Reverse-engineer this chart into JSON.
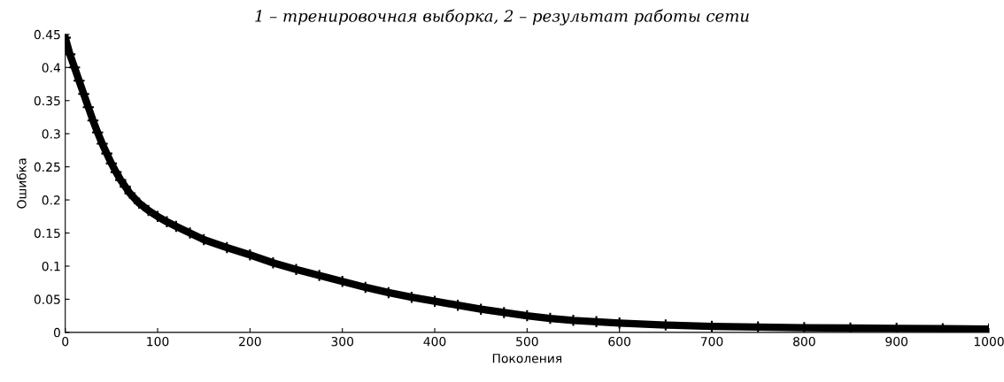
{
  "chart_data": {
    "type": "line",
    "title": "1 – тренировочная выборка, 2 – результат работы сети",
    "xlabel": "Поколения",
    "ylabel": "Ошибка",
    "x": [
      0,
      5,
      10,
      15,
      20,
      25,
      30,
      35,
      40,
      45,
      50,
      55,
      60,
      65,
      70,
      80,
      90,
      100,
      110,
      120,
      135,
      150,
      175,
      200,
      225,
      250,
      275,
      300,
      325,
      350,
      375,
      400,
      425,
      450,
      475,
      500,
      525,
      550,
      575,
      600,
      650,
      700,
      750,
      800,
      850,
      900,
      950,
      1000
    ],
    "series": [
      {
        "color": "#000000",
        "values": [
          0.445,
          0.42,
          0.4,
          0.38,
          0.36,
          0.34,
          0.32,
          0.302,
          0.285,
          0.27,
          0.255,
          0.242,
          0.23,
          0.22,
          0.21,
          0.195,
          0.184,
          0.175,
          0.167,
          0.16,
          0.15,
          0.14,
          0.128,
          0.117,
          0.105,
          0.095,
          0.086,
          0.077,
          0.068,
          0.06,
          0.053,
          0.047,
          0.041,
          0.035,
          0.03,
          0.025,
          0.021,
          0.018,
          0.016,
          0.014,
          0.011,
          0.009,
          0.008,
          0.007,
          0.0065,
          0.006,
          0.0055,
          0.005
        ]
      }
    ],
    "xlim": [
      0,
      1000
    ],
    "ylim": [
      0,
      0.45
    ],
    "xticks": [
      0,
      100,
      200,
      300,
      400,
      500,
      600,
      700,
      800,
      900,
      1000
    ],
    "yticks": [
      0,
      0.05,
      0.1,
      0.15,
      0.2,
      0.25,
      0.3,
      0.35,
      0.4,
      0.45
    ],
    "marker": "cross",
    "line_style": "solid",
    "grid": false,
    "legend": false
  }
}
